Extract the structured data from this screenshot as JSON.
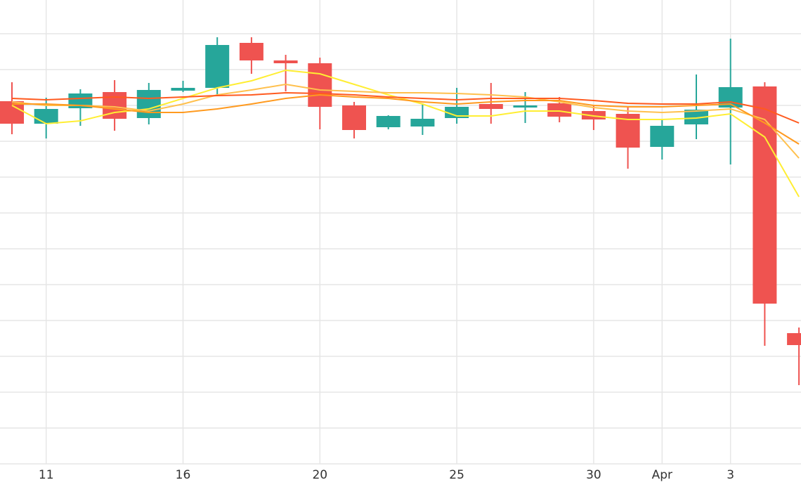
{
  "chart_data": {
    "type": "candlestick",
    "categories": [
      null,
      "11",
      null,
      null,
      null,
      "16",
      null,
      null,
      null,
      "20",
      null,
      null,
      null,
      "25",
      null,
      null,
      null,
      "30",
      null,
      "Apr",
      null,
      "3",
      null,
      null
    ],
    "open": [
      516,
      484,
      506,
      529,
      492,
      531,
      535,
      599,
      574,
      570,
      510,
      479,
      480,
      492,
      512,
      507,
      513,
      502,
      498,
      451,
      483,
      507,
      537,
      186
    ],
    "high": [
      543,
      521,
      533,
      546,
      542,
      545,
      607,
      607,
      582,
      578,
      515,
      496,
      513,
      535,
      542,
      529,
      522,
      510,
      509,
      490,
      554,
      605,
      543,
      194
    ],
    "low": [
      469,
      463,
      481,
      474,
      483,
      529,
      523,
      555,
      530,
      476,
      463,
      476,
      468,
      484,
      484,
      485,
      486,
      475,
      420,
      433,
      462,
      426,
      168,
      112
    ],
    "close": [
      484,
      505,
      527,
      491,
      532,
      535,
      596,
      574,
      570,
      508,
      475,
      495,
      491,
      508,
      505,
      510,
      494,
      490,
      450,
      481,
      504,
      536,
      228,
      169
    ],
    "up_color": "#26a69a",
    "down_color": "#ef5350",
    "series": [
      {
        "color": "#ffee33",
        "values": [
          510,
          484,
          488,
          500,
          505,
          520,
          535,
          545,
          560,
          555,
          540,
          525,
          512,
          495,
          495,
          502,
          502,
          495,
          490,
          490,
          492,
          498,
          465,
          380
        ]
      },
      {
        "color": "#ffc04d",
        "values": [
          515,
          510,
          510,
          508,
          502,
          512,
          525,
          532,
          540,
          532,
          530,
          528,
          528,
          527,
          525,
          522,
          515,
          507,
          502,
          500,
          502,
          505,
          490,
          435
        ]
      },
      {
        "color": "#ff9a1f",
        "values": [
          512,
          512,
          510,
          505,
          500,
          500,
          505,
          512,
          520,
          525,
          522,
          520,
          515,
          512,
          515,
          517,
          517,
          510,
          508,
          508,
          510,
          512,
          485,
          455
        ]
      },
      {
        "color": "#ff5a1f",
        "values": [
          520,
          518,
          520,
          522,
          520,
          522,
          524,
          525,
          528,
          527,
          525,
          522,
          520,
          518,
          520,
          520,
          520,
          517,
          513,
          512,
          512,
          515,
          505,
          485
        ]
      }
    ],
    "ylim": [
      0,
      660
    ],
    "yticks": [
      0,
      51,
      102,
      153,
      204,
      255,
      306,
      357,
      408,
      459,
      510,
      561,
      612
    ],
    "grid": true
  }
}
